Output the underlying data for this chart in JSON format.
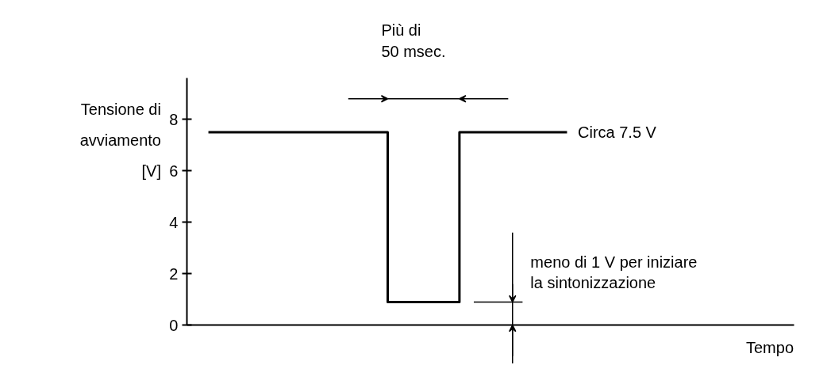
{
  "chart_data": {
    "type": "step",
    "ylabel": "Tensione di avviamento [V]",
    "categories": [
      null,
      null,
      null,
      null,
      null,
      null
    ],
    "series": [
      {
        "color": "#000000",
        "values": [
          7.5,
          7.5,
          7.5,
          0.9,
          7.5,
          7.5
        ]
      }
    ],
    "ylim": [
      0,
      9.6
    ],
    "yticks": [
      0,
      2,
      4,
      6,
      8
    ],
    "grid": false,
    "annotations": [
      "Più di 50 msec.",
      "Circa 7.5 V",
      "meno di 1 V per iniziare la sintonizzazione",
      "Tempo"
    ]
  }
}
